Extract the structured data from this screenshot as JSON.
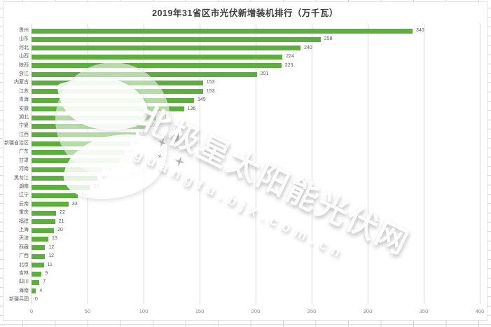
{
  "chart_data": {
    "type": "bar",
    "orientation": "horizontal",
    "title": "2019年31省区市光伏新增装机排行（万千瓦）",
    "categories": [
      "贵州",
      "山东",
      "河北",
      "山西",
      "陕西",
      "浙江",
      "内蒙古",
      "江苏",
      "青海",
      "安徽",
      "湖北",
      "宁夏",
      "江西",
      "新疆自治区",
      "广东",
      "甘肃",
      "河南",
      "黑龙江",
      "湖南",
      "辽宁",
      "云南",
      "重庆",
      "福建",
      "上海",
      "天津",
      "西藏",
      "广西",
      "北京",
      "吉林",
      "四川",
      "海南",
      "新疆兵团"
    ],
    "values": [
      340,
      258,
      240,
      224,
      223,
      201,
      153,
      153,
      145,
      136,
      111,
      102,
      93,
      88,
      83,
      79,
      63,
      59,
      52,
      41,
      33,
      22,
      21,
      20,
      15,
      12,
      12,
      11,
      9,
      7,
      4,
      0
    ],
    "xlabel": "",
    "ylabel": "",
    "xlim": [
      0,
      400
    ],
    "x_ticks": [
      0,
      50,
      100,
      150,
      200,
      250,
      300,
      350,
      400
    ],
    "grid": true,
    "legend": false,
    "data_labels": true,
    "bar_color": "#5caf3d",
    "label_color": "#595959",
    "axis_label_color": "#8c8c8c",
    "gridline_color": "#d9d9d9",
    "title_color": "#3f3f3f"
  },
  "watermark": {
    "text": "北极星太阳能光伏网",
    "subtext": "guangfu.bjx.com.cn"
  }
}
